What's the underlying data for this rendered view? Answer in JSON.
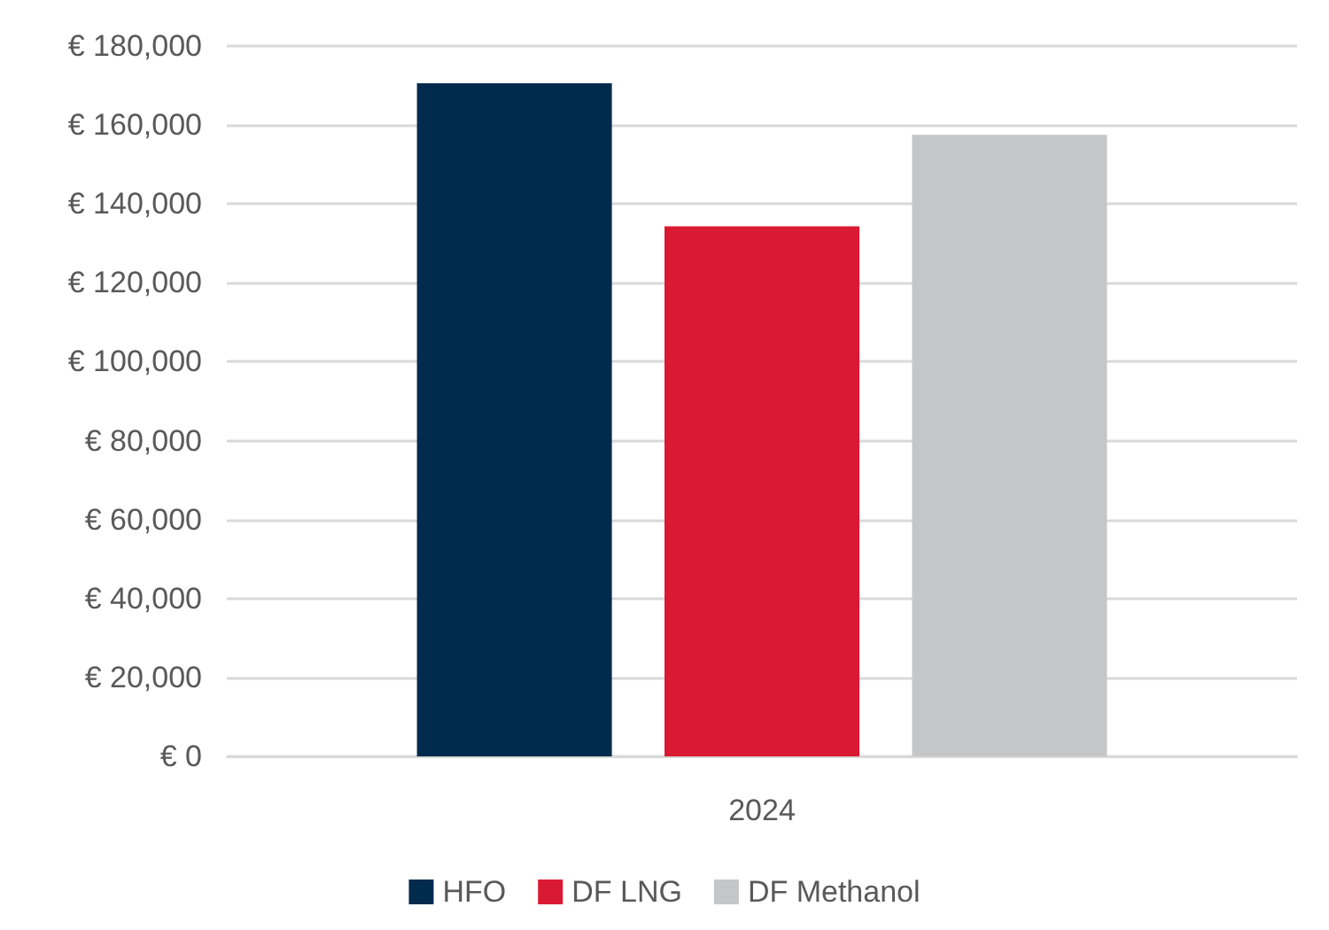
{
  "chart_data": {
    "type": "bar",
    "categories": [
      "2024"
    ],
    "series": [
      {
        "name": "HFO",
        "color": "#002b4d",
        "values": [
          170600
        ]
      },
      {
        "name": "DF LNG",
        "color": "#da1a32",
        "values": [
          134300
        ]
      },
      {
        "name": "DF Methanol",
        "color": "#c5c6c8",
        "values": [
          157500
        ]
      }
    ],
    "ylim": [
      0,
      180000
    ],
    "yticks": [
      {
        "value": 0,
        "label": "€ 0"
      },
      {
        "value": 20000,
        "label": "€ 20,000"
      },
      {
        "value": 40000,
        "label": "€ 40,000"
      },
      {
        "value": 60000,
        "label": "€ 60,000"
      },
      {
        "value": 80000,
        "label": "€ 80,000"
      },
      {
        "value": 100000,
        "label": "€ 100,000"
      },
      {
        "value": 120000,
        "label": "€ 120,000"
      },
      {
        "value": 140000,
        "label": "€ 140,000"
      },
      {
        "value": 160000,
        "label": "€ 160,000"
      },
      {
        "value": 180000,
        "label": "€ 180,000"
      }
    ],
    "grid": "y",
    "legend": "bottom"
  }
}
